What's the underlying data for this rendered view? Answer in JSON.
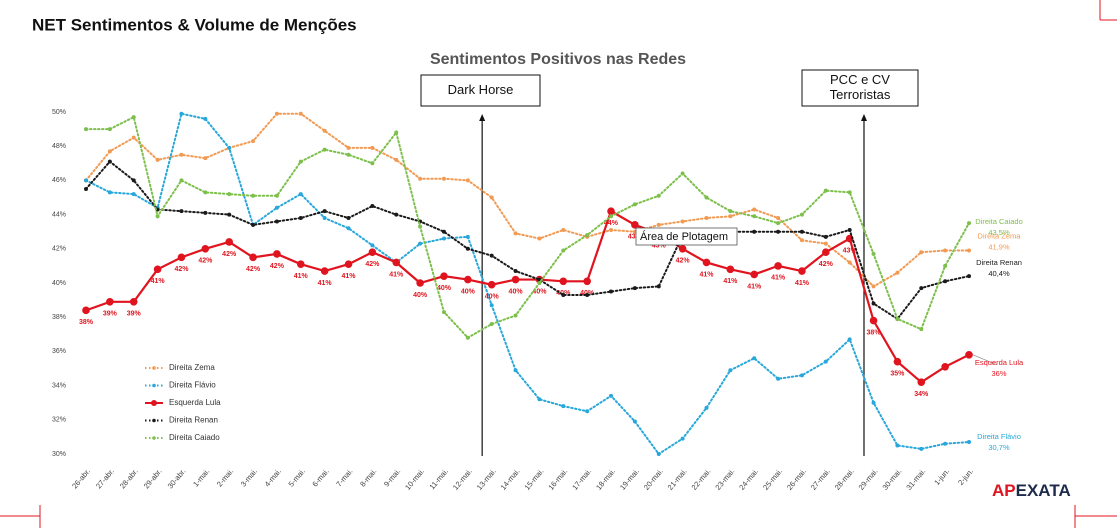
{
  "header": {
    "title": "NET Sentimentos & Volume de Menções"
  },
  "chart_data": {
    "type": "line",
    "title": "Sentimentos Positivos nas Redes",
    "categories": [
      "26-abr.",
      "27-abr.",
      "28-abr.",
      "29-abr.",
      "30-abr.",
      "1-mai.",
      "2-mai.",
      "3-mai.",
      "4-mai.",
      "5-mai.",
      "6-mai.",
      "7-mai.",
      "8-mai.",
      "9-mai.",
      "10-mai.",
      "11-mai.",
      "12-mai.",
      "13-mai.",
      "14-mai.",
      "15-mai.",
      "16-mai.",
      "17-mai.",
      "18-mai.",
      "19-mai.",
      "20-mai.",
      "21-mai.",
      "22-mai.",
      "23-mai.",
      "24-mai.",
      "25-mai.",
      "26-mai.",
      "27-mai.",
      "28-mai.",
      "29-mai.",
      "30-mai.",
      "31-mai.",
      "1-jun.",
      "2-jun."
    ],
    "ylim": [
      30,
      50
    ],
    "yticks": [
      {
        "value": 30,
        "label": "30%"
      },
      {
        "value": 32,
        "label": "32%"
      },
      {
        "value": 34,
        "label": "34%"
      },
      {
        "value": 36,
        "label": "36%"
      },
      {
        "value": 38,
        "label": "38%"
      },
      {
        "value": 40,
        "label": "40%"
      },
      {
        "value": 42,
        "label": "42%"
      },
      {
        "value": 44,
        "label": "44%"
      },
      {
        "value": 46,
        "label": "46%"
      },
      {
        "value": 48,
        "label": "48%"
      },
      {
        "value": 50,
        "label": "50%"
      }
    ],
    "grid": false,
    "series": [
      {
        "name": "Direita Zema",
        "color": "#f29a52",
        "style": "dotted",
        "end_label": "41,9%",
        "values": [
          46.0,
          47.7,
          48.5,
          47.2,
          47.5,
          47.3,
          47.9,
          48.3,
          49.9,
          49.9,
          48.9,
          47.9,
          47.9,
          47.2,
          46.1,
          46.1,
          46.0,
          45.0,
          42.9,
          42.6,
          43.1,
          42.7,
          43.1,
          43.0,
          43.4,
          43.6,
          43.8,
          43.9,
          44.3,
          43.8,
          42.5,
          42.3,
          41.2,
          39.8,
          40.6,
          41.8,
          41.9,
          41.9
        ]
      },
      {
        "name": "Direita Flávio",
        "color": "#27a7da",
        "style": "dotted",
        "end_label": "30,7%",
        "values": [
          46.0,
          45.3,
          45.2,
          44.4,
          49.9,
          49.6,
          47.9,
          43.4,
          44.4,
          45.2,
          43.8,
          43.2,
          42.2,
          41.2,
          42.3,
          42.6,
          42.7,
          38.7,
          34.9,
          33.2,
          32.8,
          32.5,
          33.4,
          31.9,
          30.0,
          30.9,
          32.7,
          34.9,
          35.6,
          34.4,
          34.6,
          35.4,
          36.7,
          33.0,
          30.5,
          30.3,
          30.6,
          30.7
        ]
      },
      {
        "name": "Esquerda Lula",
        "color": "#e0141e",
        "style": "solid",
        "end_label": "36%",
        "values": [
          38.4,
          38.9,
          38.9,
          40.8,
          41.5,
          42.0,
          42.4,
          41.5,
          41.7,
          41.1,
          40.7,
          41.1,
          41.8,
          41.2,
          40.0,
          40.4,
          40.2,
          39.9,
          40.2,
          40.2,
          40.1,
          40.1,
          44.2,
          43.4,
          42.9,
          42.0,
          41.2,
          40.8,
          40.5,
          41.0,
          40.7,
          41.8,
          42.6,
          37.8,
          35.4,
          34.2,
          35.1,
          35.8
        ],
        "value_labels": [
          "38%",
          "39%",
          "39%",
          "41%",
          "42%",
          "42%",
          "42%",
          "42%",
          "42%",
          "41%",
          "41%",
          "41%",
          "42%",
          "41%",
          "40%",
          "40%",
          "40%",
          "40%",
          "40%",
          "40%",
          "40%",
          "40%",
          "44%",
          "43%",
          "43%",
          "42%",
          "41%",
          "41%",
          "41%",
          "41%",
          "41%",
          "42%",
          "43%",
          "38%",
          "35%",
          "34%",
          null,
          null
        ]
      },
      {
        "name": "Direita Renan",
        "color": "#1a1a1a",
        "style": "dotted",
        "end_label": "40,4%",
        "values": [
          45.5,
          47.1,
          46.0,
          44.3,
          44.2,
          44.1,
          44.0,
          43.4,
          43.6,
          43.8,
          44.2,
          43.8,
          44.5,
          44.0,
          43.6,
          43.0,
          42.0,
          41.6,
          40.7,
          40.2,
          39.3,
          39.3,
          39.5,
          39.7,
          39.8,
          42.8,
          43.0,
          43.0,
          43.0,
          43.0,
          43.0,
          42.7,
          43.1,
          38.8,
          37.9,
          39.7,
          40.1,
          40.4
        ]
      },
      {
        "name": "Direita Caiado",
        "color": "#7cbf4a",
        "style": "dotted",
        "end_label": "43,5%",
        "values": [
          49.0,
          49.0,
          49.7,
          43.9,
          46.0,
          45.3,
          45.2,
          45.1,
          45.1,
          47.1,
          47.8,
          47.5,
          47.0,
          48.8,
          43.3,
          38.3,
          36.8,
          37.6,
          38.1,
          40.0,
          41.9,
          42.8,
          43.9,
          44.6,
          45.1,
          46.4,
          45.0,
          44.2,
          43.9,
          43.5,
          44.0,
          45.4,
          45.3,
          41.7,
          37.9,
          37.3,
          41.0,
          43.5
        ]
      }
    ],
    "annotations": [
      {
        "lines": [
          "Dark Horse"
        ]
      },
      {
        "lines": [
          "PCC e CV",
          "Terroristas"
        ]
      }
    ]
  },
  "tooltip": "Área de Plotagem",
  "logo": [
    "AP",
    "EXATA"
  ]
}
